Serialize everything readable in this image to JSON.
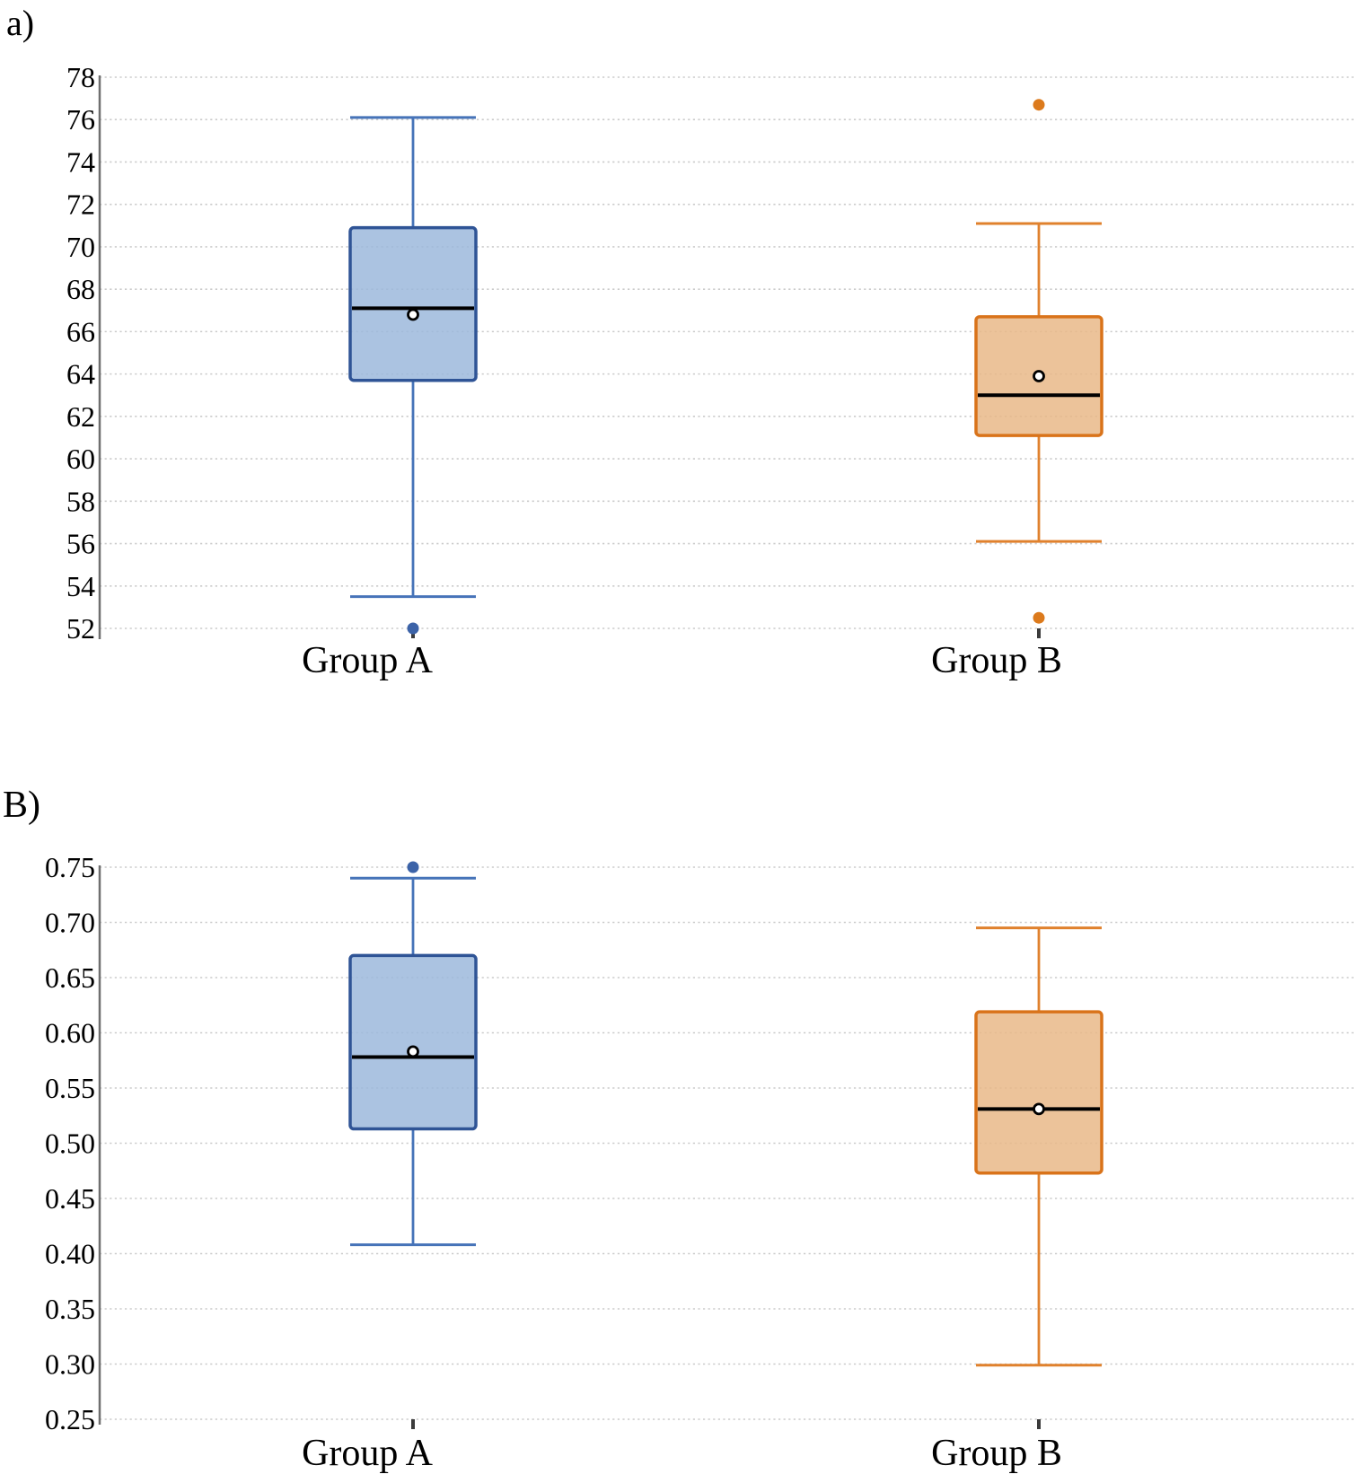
{
  "colors": {
    "background": "#ffffff",
    "text": "#000000",
    "gridline": "#cbcbcb",
    "axis": "#6f6f6f",
    "category_tick": "#3b3b3b",
    "median": "#000000",
    "mean_fill": "#ffffff",
    "mean_stroke": "#000000",
    "blue": {
      "fill": "#9cb9dc",
      "border": "#2f5496",
      "whisker": "#4673b8",
      "outlier": "#3c63a8"
    },
    "orange": {
      "fill": "#e9b888",
      "border": "#d9731a",
      "whisker": "#e0812d",
      "outlier": "#dc7a1c"
    }
  },
  "chart_data": [
    {
      "type": "box",
      "panel_label": "a)",
      "title": "",
      "xlabel": "",
      "ylabel": "",
      "ylim": [
        52,
        78
      ],
      "ytick_labels": [
        "78",
        "76",
        "74",
        "72",
        "70",
        "68",
        "66",
        "64",
        "62",
        "60",
        "58",
        "56",
        "54",
        "52"
      ],
      "grid": "horizontal dashed",
      "legend": "none",
      "categories": [
        "Group A",
        "Group B"
      ],
      "series": [
        {
          "name": "Group A",
          "color": "blue",
          "whisker_low": 53.5,
          "q1": 63.7,
          "median": 67.1,
          "mean": 66.8,
          "q3": 70.9,
          "whisker_high": 76.1,
          "outliers": [
            52.0
          ]
        },
        {
          "name": "Group B",
          "color": "orange",
          "whisker_low": 56.1,
          "q1": 61.1,
          "median": 63.0,
          "mean": 63.9,
          "q3": 66.7,
          "whisker_high": 71.1,
          "outliers": [
            76.7,
            52.5
          ]
        }
      ]
    },
    {
      "type": "box",
      "panel_label": "B)",
      "title": "",
      "xlabel": "",
      "ylabel": "",
      "ylim": [
        0.25,
        0.75
      ],
      "ytick_labels": [
        "0.75",
        "0.70",
        "0.65",
        "0.60",
        "0.55",
        "0.50",
        "0.45",
        "0.40",
        "0.35",
        "0.30",
        "0.25"
      ],
      "grid": "horizontal dashed",
      "legend": "none",
      "categories": [
        "Group A",
        "Group B"
      ],
      "series": [
        {
          "name": "Group A",
          "color": "blue",
          "whisker_low": 0.408,
          "q1": 0.513,
          "median": 0.578,
          "mean": 0.583,
          "q3": 0.67,
          "whisker_high": 0.74,
          "outliers": [
            0.75
          ]
        },
        {
          "name": "Group B",
          "color": "orange",
          "whisker_low": 0.299,
          "q1": 0.473,
          "median": 0.531,
          "mean": 0.531,
          "q3": 0.619,
          "whisker_high": 0.695,
          "outliers": []
        }
      ]
    }
  ]
}
